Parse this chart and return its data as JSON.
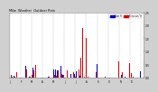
{
  "title": "Milw  Weather  Outdoor Rain",
  "legend": [
    "Past Yr",
    "Previous Yr"
  ],
  "bg_color": "#d0d0d0",
  "plot_bg_color": "#ffffff",
  "bar_color_current": "#dd0000",
  "bar_color_previous": "#0000cc",
  "ylim": [
    0,
    2.5
  ],
  "num_bars": 365,
  "seed": 42,
  "rain_prob": 0.35,
  "rain_scale": 0.18,
  "heavy_prob": 0.04,
  "heavy_scale": 0.9
}
